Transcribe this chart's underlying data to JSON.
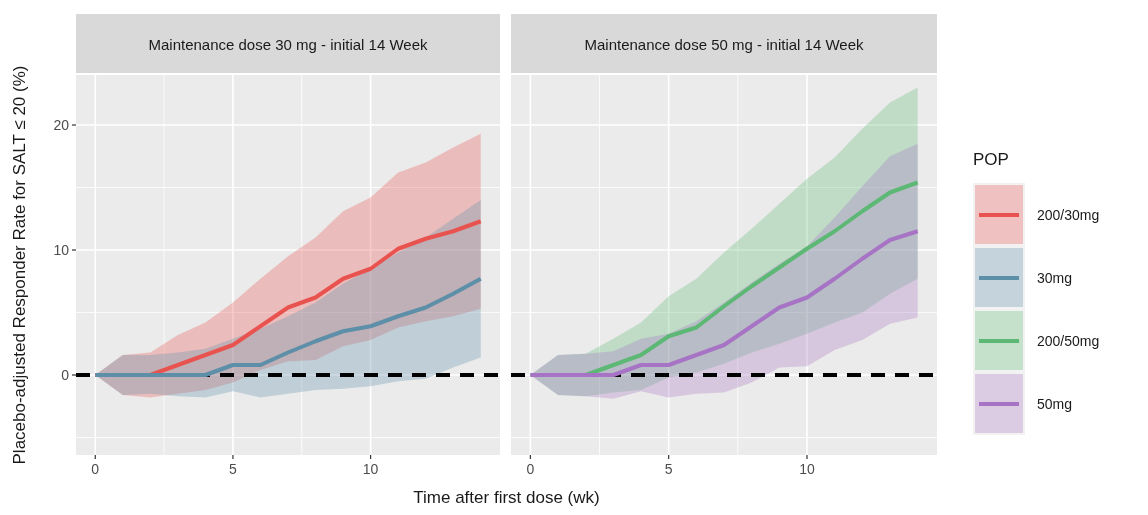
{
  "chart_data": [
    {
      "type": "line",
      "title": "Maintenance dose 30 mg - initial 14 Week",
      "ylabel": "Placebo-adjusted Responder Rate for SALT ≤ 20 (%)",
      "xlabel": "Time after first dose (wk)",
      "x": [
        0,
        1,
        2,
        3,
        4,
        5,
        6,
        7,
        8,
        9,
        10,
        11,
        12,
        13,
        14
      ],
      "xlim": [
        -0.7,
        14.7
      ],
      "xticks": [
        0,
        5,
        10
      ],
      "ylim": [
        -6.4,
        24
      ],
      "yticks": [
        0,
        10,
        20
      ],
      "grid": true,
      "legend": "right",
      "ref_lines": [
        {
          "axis": "y",
          "value": 0,
          "color": "#000000",
          "line_style": "dashed"
        }
      ],
      "series": [
        {
          "name": "200/30mg",
          "color": "#e9534f",
          "values": [
            0,
            0,
            0,
            0.8,
            1.6,
            2.4,
            3.9,
            5.4,
            6.2,
            7.7,
            8.5,
            10.1,
            10.9,
            11.5,
            12.3
          ],
          "lower": [
            0,
            -1.6,
            -1.8,
            -1.5,
            -1.2,
            -0.6,
            0.4,
            1.1,
            1.2,
            2.3,
            2.8,
            3.8,
            4.3,
            4.7,
            5.3
          ],
          "upper": [
            0,
            1.6,
            1.8,
            3.2,
            4.2,
            5.8,
            7.7,
            9.5,
            11.0,
            13.1,
            14.2,
            16.2,
            17.0,
            18.2,
            19.3
          ]
        },
        {
          "name": "30mg",
          "color": "#5d8fa8",
          "values": [
            0,
            0,
            0,
            0,
            0,
            0.8,
            0.8,
            1.8,
            2.7,
            3.5,
            3.9,
            4.7,
            5.4,
            6.5,
            7.7
          ],
          "lower": [
            0,
            -1.6,
            -1.5,
            -1.7,
            -1.8,
            -1.3,
            -1.8,
            -1.5,
            -1.2,
            -1.1,
            -0.9,
            -0.5,
            -0.3,
            0.6,
            1.4
          ],
          "upper": [
            0,
            1.6,
            1.6,
            1.8,
            2.1,
            2.9,
            3.7,
            4.7,
            5.8,
            7.3,
            8.5,
            9.8,
            11.0,
            12.5,
            14.0
          ]
        }
      ]
    },
    {
      "type": "line",
      "title": "Maintenance dose 50 mg - initial 14 Week",
      "legend_title": "POP",
      "x": [
        0,
        1,
        2,
        3,
        4,
        5,
        6,
        7,
        8,
        9,
        10,
        11,
        12,
        13,
        14
      ],
      "xlim": [
        -0.7,
        14.7
      ],
      "xticks": [
        0,
        5,
        10
      ],
      "ylim": [
        -6.4,
        24
      ],
      "yticks": [
        0,
        10,
        20
      ],
      "tick_labels": "x",
      "grid": true,
      "legend": "right",
      "ref_lines": [
        {
          "axis": "y",
          "value": 0,
          "color": "#000000",
          "line_style": "dashed"
        }
      ],
      "series": [
        {
          "name": "200/50mg",
          "color": "#5cb874",
          "values": [
            0,
            0,
            0,
            0.8,
            1.6,
            3.1,
            3.8,
            5.5,
            7.1,
            8.6,
            10.1,
            11.5,
            13.1,
            14.6,
            15.4
          ],
          "lower": [
            0,
            -1.6,
            -1.7,
            -1.4,
            -1.2,
            -0.2,
            0.2,
            0.9,
            1.8,
            2.5,
            3.3,
            4.2,
            5.0,
            6.5,
            7.7
          ],
          "upper": [
            0,
            1.6,
            1.7,
            2.9,
            4.2,
            6.3,
            7.7,
            9.8,
            11.7,
            13.7,
            15.7,
            17.4,
            19.7,
            21.8,
            23.0
          ]
        },
        {
          "name": "50mg",
          "color": "#a773c4",
          "values": [
            0,
            0,
            0,
            0,
            0.8,
            0.8,
            1.6,
            2.4,
            3.9,
            5.4,
            6.2,
            7.7,
            9.3,
            10.8,
            11.5
          ],
          "lower": [
            0,
            -1.6,
            -1.7,
            -1.9,
            -1.3,
            -1.8,
            -1.5,
            -1.4,
            -0.6,
            0.6,
            0.7,
            2.0,
            2.8,
            4.1,
            4.6
          ],
          "upper": [
            0,
            1.6,
            1.7,
            1.9,
            2.9,
            3.3,
            4.3,
            5.8,
            7.4,
            8.9,
            10.3,
            12.6,
            15.1,
            17.5,
            18.5
          ]
        }
      ]
    }
  ]
}
